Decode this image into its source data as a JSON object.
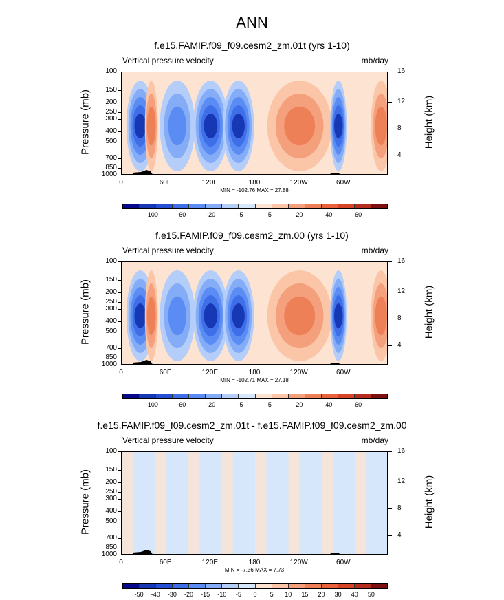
{
  "page_title": "ANN",
  "y_label": "Pressure (mb)",
  "y2_label": "Height (km)",
  "x_ticks": [
    "0",
    "60E",
    "120E",
    "180",
    "120W",
    "60W"
  ],
  "p_ticks": [
    "100",
    "150",
    "200",
    "250",
    "300",
    "400",
    "500",
    "700",
    "850",
    "1000"
  ],
  "h_ticks": [
    "16",
    "12",
    "8",
    "4"
  ],
  "panels": [
    {
      "title": "f.e15.FAMIP.f09_f09.cesm2_zm.01t (yrs 1-10)",
      "left_label": "Vertical pressure velocity",
      "right_label": "mb/day",
      "minmax": "MIN = -102.76   MAX =  27.88",
      "cb_labels": [
        "-100",
        "-60",
        "-20",
        "-5",
        "5",
        "20",
        "40",
        "60"
      ],
      "cb_colors": [
        "#08088a",
        "#1638b5",
        "#2550d4",
        "#3f6fe8",
        "#5a8cf3",
        "#85acf7",
        "#b4cdf9",
        "#d6e6fb",
        "#fde4d2",
        "#fbc6a8",
        "#f4a07c",
        "#ee8058",
        "#e8623a",
        "#d84428",
        "#b52d1e",
        "#7a1010"
      ]
    },
    {
      "title": "f.e15.FAMIP.f09_f09.cesm2_zm.00 (yrs 1-10)",
      "left_label": "Vertical pressure velocity",
      "right_label": "mb/day",
      "minmax": "MIN = -102.71   MAX =  27.18",
      "cb_labels": [
        "-100",
        "-60",
        "-20",
        "-5",
        "5",
        "20",
        "40",
        "60"
      ],
      "cb_colors": [
        "#08088a",
        "#1638b5",
        "#2550d4",
        "#3f6fe8",
        "#5a8cf3",
        "#85acf7",
        "#b4cdf9",
        "#d6e6fb",
        "#fde4d2",
        "#fbc6a8",
        "#f4a07c",
        "#ee8058",
        "#e8623a",
        "#d84428",
        "#b52d1e",
        "#7a1010"
      ]
    },
    {
      "title": "f.e15.FAMIP.f09_f09.cesm2_zm.01t - f.e15.FAMIP.f09_f09.cesm2_zm.00",
      "left_label": "Vertical pressure velocity",
      "right_label": "mb/day",
      "minmax": "MIN =  -7.36   MAX =   7.73",
      "cb_labels": [
        "-50",
        "-40",
        "-30",
        "-20",
        "-15",
        "-10",
        "-5",
        "0",
        "5",
        "10",
        "15",
        "20",
        "30",
        "40",
        "50"
      ],
      "cb_colors": [
        "#08088a",
        "#1638b5",
        "#2550d4",
        "#3f6fe8",
        "#5a8cf3",
        "#85acf7",
        "#b4cdf9",
        "#d6e6fb",
        "#fde4d2",
        "#fbc6a8",
        "#f4a07c",
        "#ee8058",
        "#e8623a",
        "#d84428",
        "#b52d1e",
        "#7a1010"
      ]
    }
  ],
  "chart_data": [
    {
      "type": "heatmap",
      "title": "f.e15.FAMIP.f09_f09.cesm2_zm.01t (yrs 1-10)",
      "xlabel": "",
      "ylabel": "Pressure (mb)",
      "y2label": "Height (km)",
      "units": "mb/day",
      "x": [
        "0",
        "60E",
        "120E",
        "180",
        "120W",
        "60W"
      ],
      "y": [
        "100",
        "150",
        "200",
        "250",
        "300",
        "400",
        "500",
        "700",
        "850",
        "1000"
      ],
      "min": -102.76,
      "max": 27.88,
      "levels": [
        -100,
        -60,
        -20,
        -5,
        5,
        20,
        40,
        60
      ],
      "features": [
        {
          "lon_range": [
            10,
            40
          ],
          "sign": "negative",
          "strength": "strong"
        },
        {
          "lon_range": [
            35,
            45
          ],
          "sign": "positive",
          "strength": "moderate"
        },
        {
          "lon_range": [
            55,
            95
          ],
          "sign": "negative",
          "strength": "moderate"
        },
        {
          "lon_range": [
            100,
            140
          ],
          "sign": "negative",
          "strength": "strong"
        },
        {
          "lon_range": [
            140,
            175
          ],
          "sign": "negative",
          "strength": "strong"
        },
        {
          "lon_range": [
            200,
            280
          ],
          "sign": "positive",
          "strength": "moderate"
        },
        {
          "lon_range": [
            285,
            300
          ],
          "sign": "negative",
          "strength": "strong"
        },
        {
          "lon_range": [
            340,
            360
          ],
          "sign": "positive",
          "strength": "moderate"
        }
      ]
    },
    {
      "type": "heatmap",
      "title": "f.e15.FAMIP.f09_f09.cesm2_zm.00 (yrs 1-10)",
      "xlabel": "",
      "ylabel": "Pressure (mb)",
      "y2label": "Height (km)",
      "units": "mb/day",
      "x": [
        "0",
        "60E",
        "120E",
        "180",
        "120W",
        "60W"
      ],
      "y": [
        "100",
        "150",
        "200",
        "250",
        "300",
        "400",
        "500",
        "700",
        "850",
        "1000"
      ],
      "min": -102.71,
      "max": 27.18,
      "levels": [
        -100,
        -60,
        -20,
        -5,
        5,
        20,
        40,
        60
      ],
      "features": [
        {
          "lon_range": [
            10,
            40
          ],
          "sign": "negative",
          "strength": "strong"
        },
        {
          "lon_range": [
            35,
            45
          ],
          "sign": "positive",
          "strength": "moderate"
        },
        {
          "lon_range": [
            55,
            95
          ],
          "sign": "negative",
          "strength": "moderate"
        },
        {
          "lon_range": [
            100,
            140
          ],
          "sign": "negative",
          "strength": "strong"
        },
        {
          "lon_range": [
            140,
            175
          ],
          "sign": "negative",
          "strength": "strong"
        },
        {
          "lon_range": [
            200,
            280
          ],
          "sign": "positive",
          "strength": "moderate"
        },
        {
          "lon_range": [
            285,
            300
          ],
          "sign": "negative",
          "strength": "strong"
        },
        {
          "lon_range": [
            340,
            360
          ],
          "sign": "positive",
          "strength": "moderate"
        }
      ]
    },
    {
      "type": "heatmap",
      "title": "f.e15.FAMIP.f09_f09.cesm2_zm.01t - f.e15.FAMIP.f09_f09.cesm2_zm.00",
      "xlabel": "",
      "ylabel": "Pressure (mb)",
      "y2label": "Height (km)",
      "units": "mb/day",
      "x": [
        "0",
        "60E",
        "120E",
        "180",
        "120W",
        "60W"
      ],
      "y": [
        "100",
        "150",
        "200",
        "250",
        "300",
        "400",
        "500",
        "700",
        "850",
        "1000"
      ],
      "min": -7.36,
      "max": 7.73,
      "levels": [
        -50,
        -40,
        -30,
        -20,
        -15,
        -10,
        -5,
        0,
        5,
        10,
        15,
        20,
        30,
        40,
        50
      ],
      "features": [
        {
          "lon_range": [
            0,
            360
          ],
          "sign": "mixed",
          "strength": "weak"
        }
      ]
    }
  ]
}
